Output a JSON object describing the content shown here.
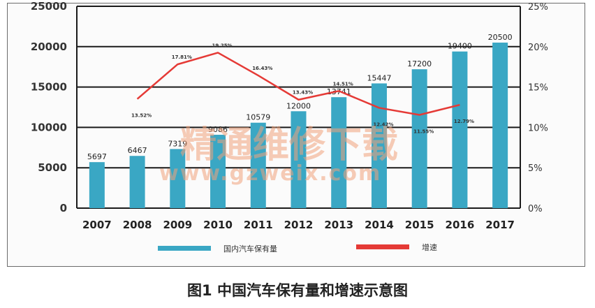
{
  "caption": "图1 中国汽车保有量和增速示意图",
  "watermark": {
    "line1": "精通维修下载",
    "line2": "www.gzweix.com"
  },
  "colors": {
    "bar": "#3aa7c4",
    "line": "#e53a36",
    "grid": "#1a1a1a"
  },
  "chart_data": {
    "type": "bar",
    "categories": [
      "2007",
      "2008",
      "2009",
      "2010",
      "2011",
      "2012",
      "2013",
      "2014",
      "2015",
      "2016",
      "2017"
    ],
    "series": [
      {
        "name": "国内汽车保有量",
        "type": "bar",
        "axis": "left",
        "values": [
          5697,
          6467,
          7319,
          9086,
          10579,
          12000,
          13741,
          15447,
          17200,
          19400,
          20500
        ],
        "labels": [
          "5697",
          "6467",
          "7319",
          "9086",
          "10579",
          "12000",
          "13741",
          "15447",
          "17200",
          "19400",
          "20500"
        ]
      },
      {
        "name": "增速",
        "type": "line",
        "axis": "right",
        "values": [
          null,
          13.52,
          17.81,
          19.25,
          16.43,
          13.43,
          14.51,
          12.42,
          11.55,
          12.79,
          null
        ],
        "labels": [
          "",
          "13.52%",
          "17.81%",
          "19.25%",
          "16.43%",
          "13.43%",
          "14.51%",
          "12.42%",
          "11.55%",
          "12.79%",
          ""
        ]
      }
    ],
    "y_left": {
      "ticks": [
        "0",
        "5000",
        "10000",
        "15000",
        "20000",
        "25000"
      ],
      "min": 0,
      "max": 25000
    },
    "y_right": {
      "ticks": [
        "0%",
        "5%",
        "10%",
        "15%",
        "20%",
        "25%"
      ],
      "min": 0,
      "max": 25
    },
    "legend": {
      "placement": "bottom",
      "items": [
        "国内汽车保有量",
        "增速"
      ]
    },
    "grid": true
  }
}
